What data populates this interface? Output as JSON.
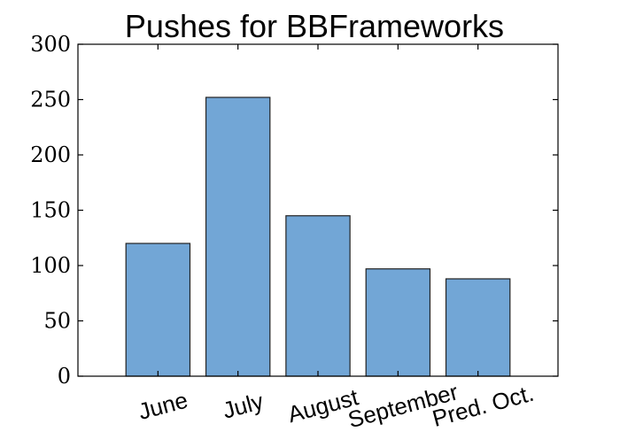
{
  "chart_data": {
    "type": "bar",
    "title": "Pushes for BBFrameworks",
    "xlabel": "",
    "ylabel": "",
    "categories": [
      "June",
      "July",
      "August",
      "September",
      "Pred. Oct."
    ],
    "values": [
      120,
      252,
      145,
      97,
      88
    ],
    "ylim": [
      0,
      300
    ],
    "yticks": [
      0,
      50,
      100,
      150,
      200,
      250,
      300
    ],
    "grid": false,
    "colors": {
      "bar": "#72a6d6",
      "edge": "#222222"
    }
  }
}
